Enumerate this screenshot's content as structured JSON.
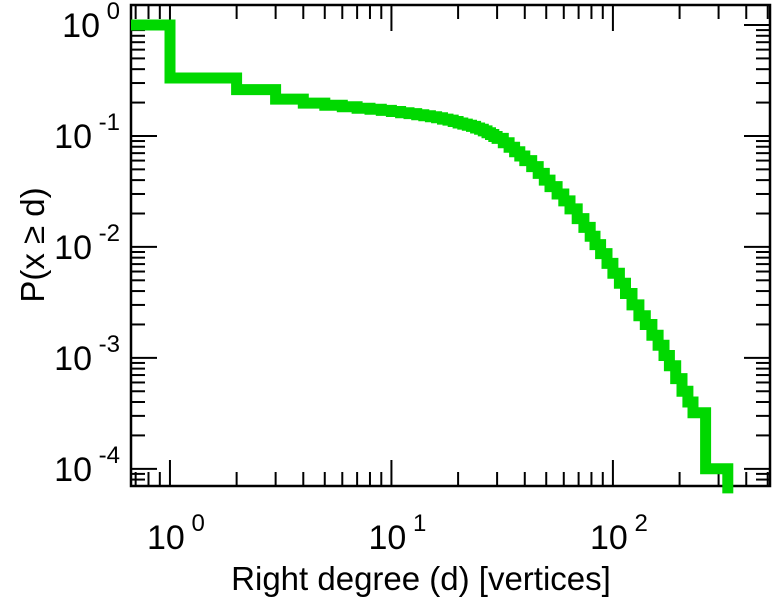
{
  "figure": {
    "xlabel": "Right degree (d) [vertices]",
    "ylabel": "P(x ≥ d)",
    "background": "#ffffff",
    "axis_color": "#000000",
    "curve_color": "#00D800",
    "x_tick_labels": [
      {
        "base": "10",
        "exp": "0",
        "value": 1
      },
      {
        "base": "10",
        "exp": "1",
        "value": 10
      },
      {
        "base": "10",
        "exp": "2",
        "value": 100
      }
    ],
    "y_tick_labels": [
      {
        "base": "10",
        "exp": "0",
        "value": 1
      },
      {
        "base": "10",
        "exp": "-1",
        "value": 0.1
      },
      {
        "base": "10",
        "exp": "-2",
        "value": 0.01
      },
      {
        "base": "10",
        "exp": "-3",
        "value": 0.001
      },
      {
        "base": "10",
        "exp": "-4",
        "value": 0.0001
      }
    ]
  },
  "chart_data": {
    "type": "line",
    "subtype": "ccdf_step_staircase",
    "title": "",
    "xlabel": "Right degree (d) [vertices]",
    "ylabel": "P(x ≥ d)",
    "xscale": "log",
    "yscale": "log",
    "xlim": [
      0.667,
      512
    ],
    "ylim": [
      7e-05,
      1.515
    ],
    "x_major_ticks": [
      1,
      10,
      100
    ],
    "y_major_ticks": [
      1,
      0.1,
      0.01,
      0.001,
      0.0001
    ],
    "grid": false,
    "legend": false,
    "series": [
      {
        "name": "right_degree_ccdf",
        "color": "#00D800",
        "line_width": 11,
        "start_value": 1.0,
        "points": [
          [
            1,
            0.333
          ],
          [
            2,
            0.262
          ],
          [
            3,
            0.215
          ],
          [
            4,
            0.198
          ],
          [
            5,
            0.189
          ],
          [
            6,
            0.183
          ],
          [
            7,
            0.178
          ],
          [
            8,
            0.174
          ],
          [
            9,
            0.17
          ],
          [
            10,
            0.166
          ],
          [
            11,
            0.162
          ],
          [
            12,
            0.159
          ],
          [
            13,
            0.155
          ],
          [
            14,
            0.152
          ],
          [
            15,
            0.149
          ],
          [
            16,
            0.146
          ],
          [
            17,
            0.142
          ],
          [
            18,
            0.139
          ],
          [
            19,
            0.135
          ],
          [
            20,
            0.131
          ],
          [
            21,
            0.128
          ],
          [
            22,
            0.125
          ],
          [
            23,
            0.122
          ],
          [
            24,
            0.118
          ],
          [
            25,
            0.115
          ],
          [
            26,
            0.111
          ],
          [
            27,
            0.107
          ],
          [
            28,
            0.103
          ],
          [
            29,
            0.099
          ],
          [
            30,
            0.095
          ],
          [
            32,
            0.087
          ],
          [
            34,
            0.079
          ],
          [
            36,
            0.072
          ],
          [
            38,
            0.066
          ],
          [
            40,
            0.06
          ],
          [
            43,
            0.053
          ],
          [
            46,
            0.046
          ],
          [
            49,
            0.04
          ],
          [
            52,
            0.035
          ],
          [
            56,
            0.03
          ],
          [
            60,
            0.026
          ],
          [
            64,
            0.022
          ],
          [
            69,
            0.018
          ],
          [
            74,
            0.015
          ],
          [
            79,
            0.0125
          ],
          [
            83,
            0.0105
          ],
          [
            88,
            0.0087
          ],
          [
            94,
            0.0071
          ],
          [
            100,
            0.0058
          ],
          [
            107,
            0.0047
          ],
          [
            114,
            0.0038
          ],
          [
            122,
            0.003
          ],
          [
            131,
            0.0024
          ],
          [
            140,
            0.002
          ],
          [
            150,
            0.0016
          ],
          [
            160,
            0.0013
          ],
          [
            170,
            0.00105
          ],
          [
            180,
            0.00085
          ],
          [
            192,
            0.00065
          ],
          [
            205,
            0.0005
          ],
          [
            218,
            0.0004
          ],
          [
            230,
            0.00032
          ],
          [
            262,
            0.0001
          ],
          [
            330,
            6e-05
          ]
        ]
      }
    ]
  }
}
